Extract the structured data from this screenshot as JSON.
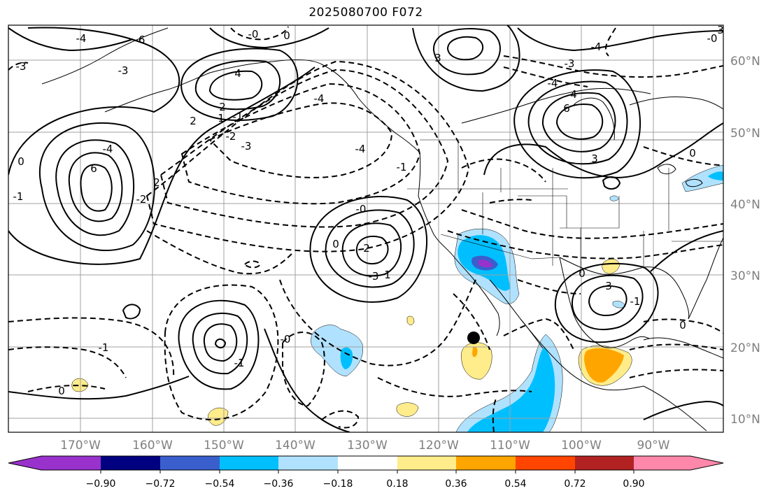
{
  "title": "2025080700 F072",
  "map": {
    "lon_range": [
      -180,
      -80
    ],
    "lat_range": [
      8,
      65
    ],
    "lat_labels": [
      "60°N",
      "50°N",
      "40°N",
      "30°N",
      "20°N",
      "10°N"
    ],
    "lon_labels": [
      "170°W",
      "160°W",
      "150°W",
      "140°W",
      "130°W",
      "120°W",
      "110°W",
      "100°W",
      "90°W"
    ],
    "contour_labels": [
      "-4",
      "-6",
      "-3",
      "-3",
      "-0",
      "0",
      "4",
      "3",
      "-4",
      "-3",
      "-0",
      "3",
      "2",
      "1",
      "2",
      "-1",
      "-2",
      "-3",
      "-4",
      "-4",
      "-1",
      "-4",
      "0",
      "2",
      "-2",
      "-1",
      "6",
      "3",
      "6",
      "4",
      "-4",
      "0",
      "2",
      "1",
      "-3",
      "-0",
      "0",
      "0",
      "3",
      "-1",
      "0",
      "-1",
      "-1",
      "0",
      "-0"
    ]
  },
  "colorbar": {
    "ticks": [
      "−0.90",
      "−0.72",
      "−0.54",
      "−0.36",
      "−0.18",
      "0.18",
      "0.36",
      "0.54",
      "0.72",
      "0.90"
    ],
    "colors": [
      "#9932cc",
      "#000080",
      "#3a5fcd",
      "#00bfff",
      "#b0e2ff",
      "#ffffff",
      "#ffec8b",
      "#ffa500",
      "#ff4500",
      "#b22222",
      "#ff88aa"
    ]
  }
}
